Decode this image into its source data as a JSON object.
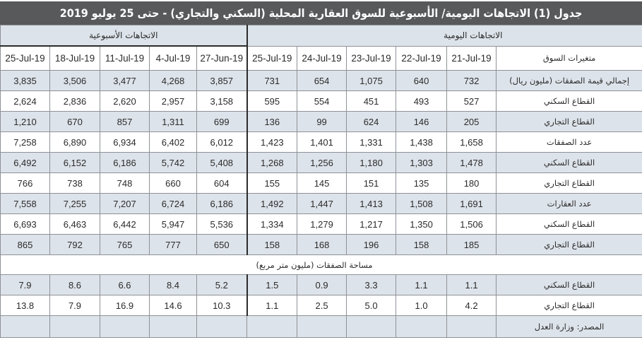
{
  "title": "جدول (1) الاتجاهات اليومية/ الأسبوعية  للسوق العقارية المحلية (السكني والتجاري) - حتى 25 يوليو 2019",
  "groups": {
    "weekly": "الاتجاهات الأسبوعية",
    "daily": "الاتجاهات اليومية"
  },
  "header": {
    "label": "متغيرات السوق",
    "weekly_dates": [
      "25-Jul-19",
      "18-Jul-19",
      "11-Jul-19",
      "4-Jul-19",
      "27-Jun-19"
    ],
    "daily_dates": [
      "25-Jul-19",
      "24-Jul-19",
      "23-Jul-19",
      "22-Jul-19",
      "21-Jul-19"
    ]
  },
  "rows": [
    {
      "label": "إجمالي قيمة الصفقات (مليون ريال)",
      "weekly": [
        "3,835",
        "3,506",
        "3,477",
        "4,268",
        "3,857"
      ],
      "daily": [
        "731",
        "654",
        "1,075",
        "640",
        "732"
      ]
    },
    {
      "label": "القطاع السكني",
      "weekly": [
        "2,624",
        "2,836",
        "2,620",
        "2,957",
        "3,158"
      ],
      "daily": [
        "595",
        "554",
        "451",
        "493",
        "527"
      ]
    },
    {
      "label": "القطاع التجاري",
      "weekly": [
        "1,210",
        "670",
        "857",
        "1,311",
        "699"
      ],
      "daily": [
        "136",
        "99",
        "624",
        "146",
        "205"
      ]
    },
    {
      "label": "عدد الصفقات",
      "weekly": [
        "7,258",
        "6,890",
        "6,934",
        "6,402",
        "6,012"
      ],
      "daily": [
        "1,423",
        "1,401",
        "1,331",
        "1,438",
        "1,658"
      ]
    },
    {
      "label": "القطاع السكني",
      "weekly": [
        "6,492",
        "6,152",
        "6,186",
        "5,742",
        "5,408"
      ],
      "daily": [
        "1,268",
        "1,256",
        "1,180",
        "1,303",
        "1,478"
      ]
    },
    {
      "label": "القطاع التجاري",
      "weekly": [
        "766",
        "738",
        "748",
        "660",
        "604"
      ],
      "daily": [
        "155",
        "145",
        "151",
        "135",
        "180"
      ]
    },
    {
      "label": "عدد العقارات",
      "weekly": [
        "7,558",
        "7,255",
        "7,207",
        "6,724",
        "6,186"
      ],
      "daily": [
        "1,492",
        "1,447",
        "1,413",
        "1,508",
        "1,691"
      ]
    },
    {
      "label": "القطاع السكني",
      "weekly": [
        "6,693",
        "6,463",
        "6,442",
        "5,947",
        "5,536"
      ],
      "daily": [
        "1,334",
        "1,279",
        "1,217",
        "1,350",
        "1,506"
      ]
    },
    {
      "label": "القطاع التجاري",
      "weekly": [
        "865",
        "792",
        "765",
        "777",
        "650"
      ],
      "daily": [
        "158",
        "168",
        "196",
        "158",
        "185"
      ]
    }
  ],
  "area_section": {
    "title": "مساحة الصفقات (مليون متر مربع)",
    "rows": [
      {
        "label": "القطاع السكني",
        "weekly": [
          "7.9",
          "8.6",
          "6.6",
          "8.4",
          "5.2"
        ],
        "daily": [
          "1.5",
          "0.9",
          "3.3",
          "1.1",
          "1.1"
        ]
      },
      {
        "label": "القطاع التجاري",
        "weekly": [
          "13.8",
          "7.9",
          "16.9",
          "14.6",
          "10.3"
        ],
        "daily": [
          "1.1",
          "2.5",
          "5.0",
          "1.0",
          "4.2"
        ]
      }
    ]
  },
  "source": "المصدر: وزارة العدل",
  "colors": {
    "title_bg": "#58595b",
    "shade_bg": "#dde3ea",
    "border": "#8e9297",
    "text": "#2b2b2b"
  }
}
